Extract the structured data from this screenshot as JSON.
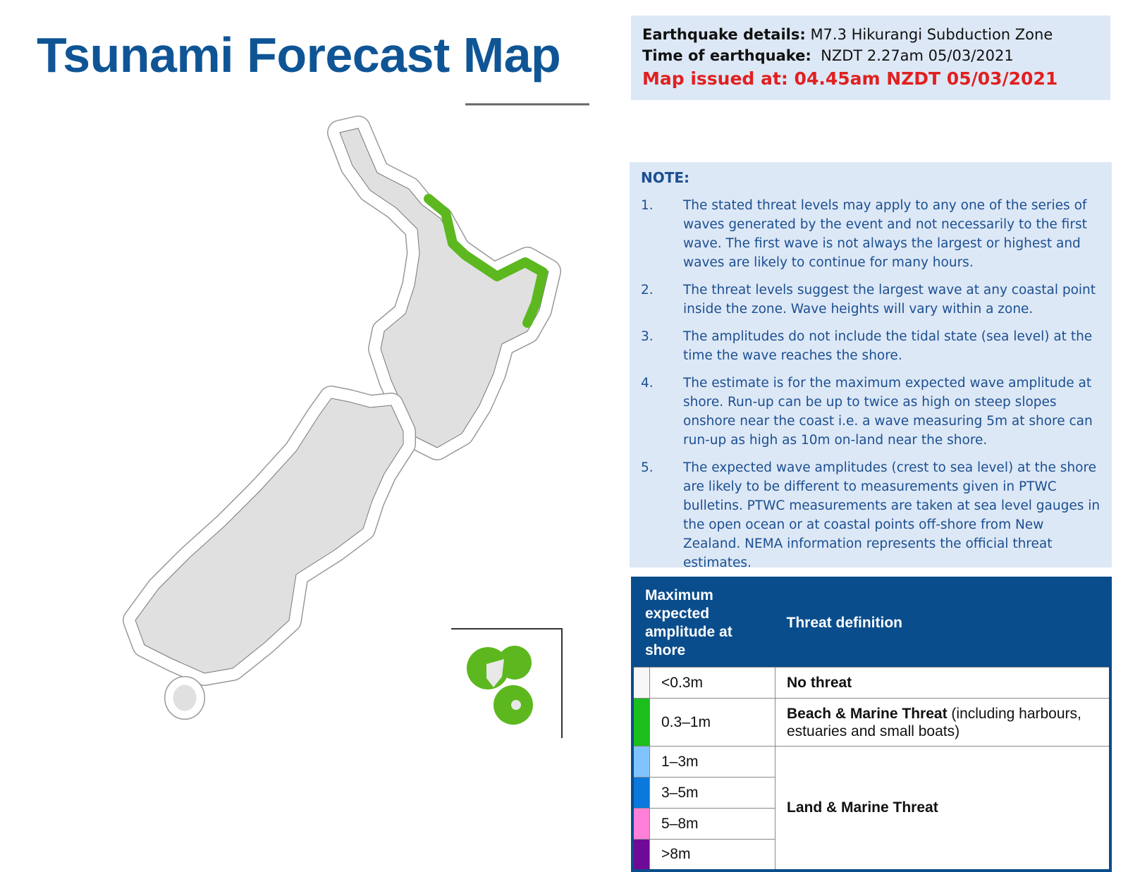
{
  "header": {
    "title": "Tsunami Forecast Map"
  },
  "details": {
    "earthquake_label": "Earthquake details:",
    "earthquake": "M7.3 Hikurangi Subduction Zone",
    "time_label": "Time of earthquake:",
    "time": "NZDT 2.27am 05/03/2021",
    "issued": "Map issued at: 04.45am NZDT 05/03/2021"
  },
  "note": {
    "heading": "NOTE:",
    "items": [
      {
        "number": "1.",
        "text": "The stated threat levels may apply to any one of the series of waves generated by the event and not necessarily to the first wave. The first wave is not always the largest or highest and waves are likely to continue for many hours."
      },
      {
        "number": "2.",
        "text": "The threat levels suggest the largest wave at any coastal point inside the zone. Wave heights will vary within a zone."
      },
      {
        "number": "3.",
        "text": "The amplitudes do not include the tidal state (sea level) at the time the wave reaches the shore."
      },
      {
        "number": "4.",
        "text": "The estimate is for the maximum expected wave amplitude at shore. Run-up can be up to twice as high on steep slopes onshore near the coast i.e. a wave measuring 5m at shore can run-up as high as 10m on-land near the shore."
      },
      {
        "number": "5.",
        "text": "The expected wave amplitudes (crest to sea level) at the shore are likely to be different to measurements given in PTWC bulletins. PTWC measurements are taken at sea level gauges in the open ocean or at coastal points off-shore from New Zealand. NEMA information represents the official threat estimates."
      }
    ]
  },
  "legend": {
    "headers": [
      "Maximum expected amplitude at shore",
      "Threat definition"
    ],
    "rows": [
      {
        "color": "#f7f7f7",
        "amplitude": "<0.3m"
      },
      {
        "color": "#1cbe1c",
        "amplitude": "0.3–1m"
      },
      {
        "color": "#80c4ff",
        "amplitude": "1–3m"
      },
      {
        "color": "#0a78dc",
        "amplitude": "3–5m"
      },
      {
        "color": "#ff80d8",
        "amplitude": "5–8m"
      },
      {
        "color": "#6e0a96",
        "amplitude": ">8m"
      }
    ],
    "threats": [
      {
        "label": "No threat"
      },
      {
        "label": "Beach & Marine Threat",
        "detail": "(including harbours, estuaries and small boats)"
      },
      {
        "label": "Land & Marine Threat"
      }
    ]
  }
}
